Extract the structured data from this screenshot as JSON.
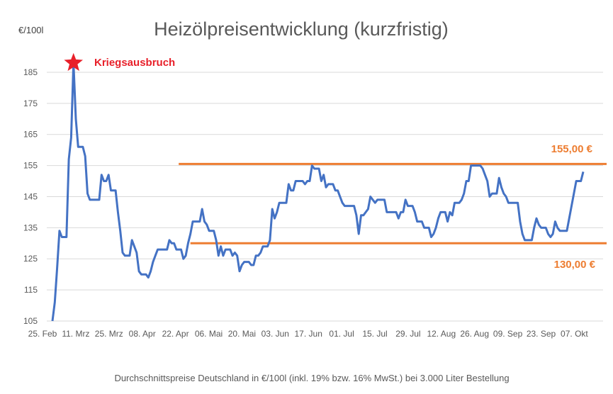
{
  "chart_data": {
    "type": "line",
    "title": "Heizölpreisentwicklung (kurzfristig)",
    "ylabel": "€/100l",
    "footnote": "Durchschnittspreise Deutschland in €/100l (inkl. 19% bzw. 16%  MwSt.) bei 3.000 Liter Bestellung",
    "ylim": [
      105,
      190
    ],
    "yticks": [
      105,
      115,
      125,
      135,
      145,
      155,
      165,
      175,
      185
    ],
    "xticks": [
      "25. Feb",
      "11. Mrz",
      "25. Mrz",
      "08. Apr",
      "22. Apr",
      "06. Mai",
      "20. Mai",
      "03. Jun",
      "17. Jun",
      "01. Jul",
      "15. Jul",
      "29. Jul",
      "12. Aug",
      "26. Aug",
      "09. Sep",
      "23. Sep",
      "07. Okt"
    ],
    "grid": true,
    "line_color": "#4472C4",
    "series": [
      {
        "values": [
          105,
          111,
          122,
          134,
          132,
          132,
          132,
          157,
          164,
          188,
          170,
          161,
          161,
          161,
          158,
          146,
          144,
          144,
          144,
          144,
          144,
          152,
          150,
          150,
          152,
          147,
          147,
          147,
          140,
          134,
          127,
          126,
          126,
          126,
          131,
          129,
          127,
          121,
          120,
          120,
          120,
          119,
          121,
          124,
          126,
          128,
          128,
          128,
          128,
          128,
          131,
          130,
          130,
          128,
          128,
          128,
          125,
          126,
          130,
          133,
          137,
          137,
          137,
          137,
          141,
          137,
          136,
          134,
          134,
          134,
          131,
          126,
          129,
          126,
          128,
          128,
          128,
          126,
          127,
          126,
          121,
          123,
          124,
          124,
          124,
          123,
          123,
          126,
          126,
          127,
          129,
          129,
          129,
          131,
          141,
          138,
          140,
          143,
          143,
          143,
          143,
          149,
          147,
          147,
          150,
          150,
          150,
          150,
          149,
          150,
          150,
          155,
          154,
          154,
          154,
          150,
          152,
          148,
          149,
          149,
          149,
          147,
          147,
          145,
          143,
          142,
          142,
          142,
          142,
          142,
          139,
          133,
          139,
          139,
          140,
          141,
          145,
          144,
          143,
          144,
          144,
          144,
          144,
          140,
          140,
          140,
          140,
          140,
          138,
          140,
          140,
          144,
          142,
          142,
          142,
          140,
          137,
          137,
          137,
          135,
          135,
          135,
          132,
          133,
          135,
          138,
          140,
          140,
          140,
          137,
          140,
          139,
          143,
          143,
          143,
          144,
          146,
          150,
          150,
          155,
          155,
          155,
          155,
          155,
          154,
          152,
          150,
          145,
          146,
          146,
          146,
          151,
          148,
          146,
          145,
          143,
          143,
          143,
          143,
          143,
          137,
          133,
          131,
          131,
          131,
          131,
          135,
          138,
          136,
          135,
          135,
          135,
          133,
          132,
          133,
          137,
          135,
          134,
          134,
          134,
          134,
          138,
          142,
          146,
          150,
          150,
          150,
          153
        ]
      }
    ],
    "annotations": [
      {
        "text": "Kriegsausbruch",
        "marker": "star",
        "color": "#e8202a",
        "at_index": 9,
        "y": 188
      },
      {
        "text": "155,00 €",
        "color": "#ed7d31",
        "type": "hline",
        "y": 155.5,
        "from_index": 54
      },
      {
        "text": "130,00 €",
        "color": "#ed7d31",
        "type": "hline",
        "y": 130.0,
        "from_index": 59
      }
    ]
  }
}
